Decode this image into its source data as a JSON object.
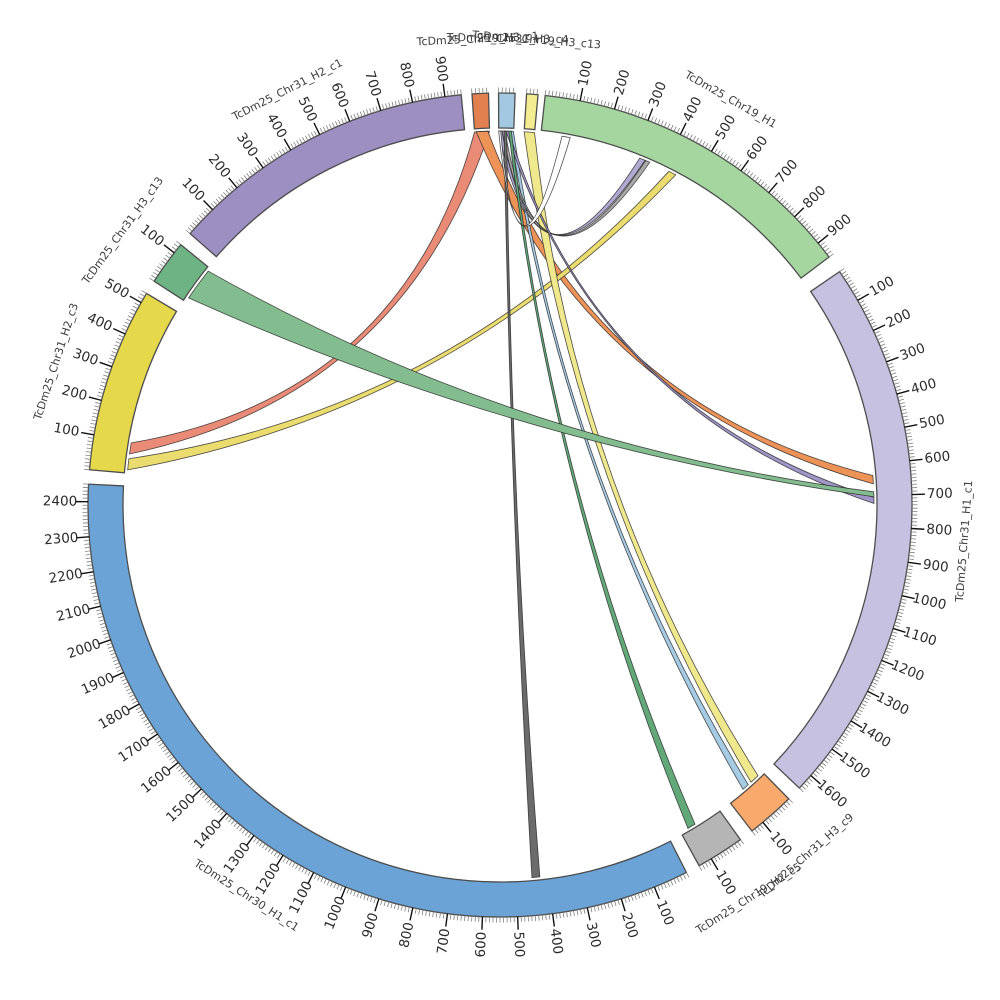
{
  "figure": {
    "kind": "circos-synteny-plot",
    "background": "#ffffff",
    "tick_label_color": "#2b2b2b",
    "segment_label_color": "#3c3c3c",
    "segment_outline": "#4d4d4d"
  },
  "chart_data": {
    "type": "chord",
    "title": "",
    "tick_major_interval": 100,
    "tick_minor_interval": 10,
    "segments": [
      {
        "id": "chr19_h3_c1",
        "label": "TcDm25_Chr19_H3_c1",
        "length": 45,
        "color": "#e2814f",
        "a0": -3.9,
        "a1": -1.6
      },
      {
        "id": "chr31_h3_c4",
        "label": "TcDm25_Chr31_H3_c4",
        "length": 45,
        "color": "#a2c8e2",
        "a0": -0.2,
        "a1": 2.1
      },
      {
        "id": "chr19_h3_c13",
        "label": "TcDm25_Chr19_H3_c13",
        "length": 33,
        "color": "#f3ec90",
        "a0": 3.7,
        "a1": 5.3
      },
      {
        "id": "chr19_h1",
        "label": "TcDm25_Chr19_H1",
        "length": 950,
        "color": "#a5d6a0",
        "a0": 6.3,
        "a1": 53.0
      },
      {
        "id": "chr31_h1_c1",
        "label": "TcDm25_Chr31_H1_c1",
        "length": 1650,
        "color": "#c6c1e0",
        "a0": 55.5,
        "a1": 133.4
      },
      {
        "id": "chr31_h3_c9",
        "label": "TcDm25_Chr31_H3_c9",
        "length": 140,
        "color": "#f9a96b",
        "a0": 135.5,
        "a1": 142.3
      },
      {
        "id": "chr19_h2_c5",
        "label": "TcDm25_Chr19_H2_c5",
        "length": 140,
        "color": "#b5b5b5",
        "a0": 144.3,
        "a1": 151.1
      },
      {
        "id": "chr30_h1_c1",
        "label": "TcDm25_Chr30_H1_c1",
        "length": 2450,
        "color": "#6ba3d6",
        "a0": 153.1,
        "a1": 272.9
      },
      {
        "id": "chr31_h2_c3",
        "label": "TcDm25_Chr31_H2_c3",
        "length": 530,
        "color": "#e5d94b",
        "a0": 274.9,
        "a1": 300.9
      },
      {
        "id": "chr31_h3_c13",
        "label": "TcDm25_Chr31_H3_c13",
        "length": 130,
        "color": "#6db383",
        "a0": 302.9,
        "a1": 309.2
      },
      {
        "id": "chr31_h2_c1",
        "label": "TcDm25_Chr31_H2_c1",
        "length": 950,
        "color": "#9e8fc2",
        "a0": 311.2,
        "a1": 354.6
      }
    ],
    "links": [
      {
        "id": "link-orange-to-yellowleft",
        "source": {
          "seg": "chr19_h3_c1",
          "start": 0,
          "end": 45
        },
        "target": {
          "seg": "chr31_h2_c3",
          "start": 60,
          "end": 95
        },
        "color": "#e98b77"
      },
      {
        "id": "link-orange-to-lavender",
        "source": {
          "seg": "chr19_h3_c1",
          "start": 5,
          "end": 40
        },
        "target": {
          "seg": "chr31_h1_c1",
          "start": 635,
          "end": 662
        },
        "color": "#ee9357"
      },
      {
        "id": "link-yellowleft-to-green",
        "source": {
          "seg": "chr31_h2_c3",
          "start": 10,
          "end": 45
        },
        "target": {
          "seg": "chr19_h1",
          "start": 418,
          "end": 442
        },
        "color": "#eadc6e"
      },
      {
        "id": "link-yellowsmall-to-c9",
        "source": {
          "seg": "chr19_h3_c13",
          "start": 0,
          "end": 33
        },
        "target": {
          "seg": "chr31_h3_c9",
          "start": 18,
          "end": 48
        },
        "color": "#f0e88c"
      },
      {
        "id": "link-bluesmall-to-c9",
        "source": {
          "seg": "chr31_h3_c4",
          "start": 34,
          "end": 44
        },
        "target": {
          "seg": "chr31_h3_c9",
          "start": 60,
          "end": 82
        },
        "color": "#a6cbe4"
      },
      {
        "id": "link-bluesmall-to-green-a",
        "source": {
          "seg": "chr31_h3_c4",
          "start": 0,
          "end": 10
        },
        "target": {
          "seg": "chr19_h1",
          "start": 318,
          "end": 336
        },
        "color": "#b3aad4"
      },
      {
        "id": "link-bluesmall-to-green-b",
        "source": {
          "seg": "chr31_h3_c4",
          "start": 10,
          "end": 19
        },
        "target": {
          "seg": "chr19_h1",
          "start": 338,
          "end": 352
        },
        "color": "#ababab"
      },
      {
        "id": "link-bluesmall-to-lavender",
        "source": {
          "seg": "chr31_h3_c4",
          "start": 22,
          "end": 30
        },
        "target": {
          "seg": "chr31_h1_c1",
          "start": 706,
          "end": 726
        },
        "color": "#a195c7"
      },
      {
        "id": "link-bluesmall-to-gray",
        "source": {
          "seg": "chr31_h3_c4",
          "start": 30,
          "end": 38
        },
        "target": {
          "seg": "chr19_h2_c5",
          "start": 88,
          "end": 114
        },
        "color": "#62a878"
      },
      {
        "id": "link-bluesmall-to-blue",
        "source": {
          "seg": "chr31_h3_c4",
          "start": 16,
          "end": 24
        },
        "target": {
          "seg": "chr30_h1_c1",
          "start": 425,
          "end": 450
        },
        "color": "#6b6b6b"
      },
      {
        "id": "link-c13-to-lavender",
        "source": {
          "seg": "chr31_h3_c13",
          "start": 15,
          "end": 120
        },
        "target": {
          "seg": "chr31_h1_c1",
          "start": 688,
          "end": 704
        },
        "color": "#83bd8f"
      },
      {
        "id": "link-green-to-bluesmall",
        "source": {
          "seg": "chr19_h1",
          "start": 66,
          "end": 92
        },
        "target": {
          "seg": "chr31_h3_c4",
          "start": 0,
          "end": 6
        },
        "color": "#ffffff"
      }
    ]
  }
}
